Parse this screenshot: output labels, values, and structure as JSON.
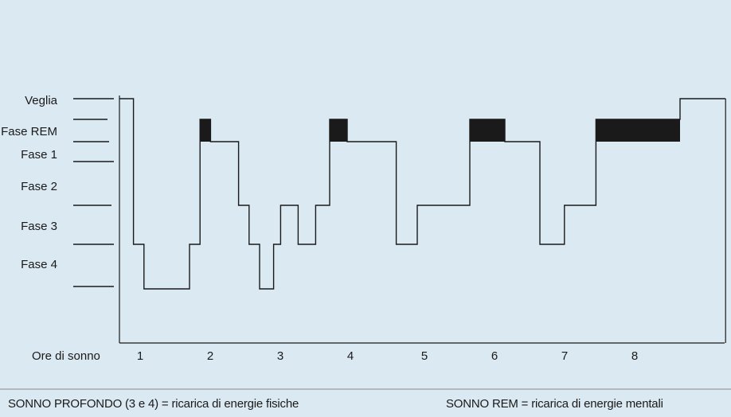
{
  "chart_data": {
    "type": "line",
    "title": "",
    "xlabel": "Ore di sonno",
    "ylabel": "",
    "x_ticks": [
      1,
      2,
      3,
      4,
      5,
      6,
      7,
      8
    ],
    "y_categories": [
      "Veglia",
      "Fase REM",
      "Fase 1",
      "Fase 2",
      "Fase 3",
      "Fase 4"
    ],
    "series": [
      {
        "step_points": [
          [
            0.0,
            "Veglia"
          ],
          [
            0.2,
            "Fase 3"
          ],
          [
            0.35,
            "Fase 4"
          ],
          [
            1.0,
            "Fase 3"
          ],
          [
            1.15,
            "Fase REM"
          ],
          [
            1.3,
            "Fase 1"
          ],
          [
            1.7,
            "Fase 2"
          ],
          [
            1.85,
            "Fase 3"
          ],
          [
            2.0,
            "Fase 4"
          ],
          [
            2.2,
            "Fase 3"
          ],
          [
            2.3,
            "Fase 2"
          ],
          [
            2.55,
            "Fase 3"
          ],
          [
            2.8,
            "Fase 2"
          ],
          [
            3.0,
            "Fase REM"
          ],
          [
            3.25,
            "Fase 1"
          ],
          [
            3.95,
            "Fase 3"
          ],
          [
            4.25,
            "Fase 2"
          ],
          [
            5.0,
            "Fase REM"
          ],
          [
            5.5,
            "Fase 1"
          ],
          [
            6.0,
            "Fase 3"
          ],
          [
            6.35,
            "Fase 2"
          ],
          [
            6.8,
            "Fase REM"
          ],
          [
            8.0,
            "Veglia"
          ],
          [
            8.65,
            "Veglia"
          ]
        ]
      }
    ],
    "rem_periods": [
      [
        1.15,
        1.3
      ],
      [
        3.0,
        3.25
      ],
      [
        5.0,
        5.5
      ],
      [
        6.8,
        8.0
      ]
    ],
    "grid": false,
    "legend": "none"
  },
  "footer": {
    "left": "SONNO PROFONDO (3 e 4) = ricarica di energie fisiche",
    "right": "SONNO REM = ricarica di energie mentali"
  }
}
